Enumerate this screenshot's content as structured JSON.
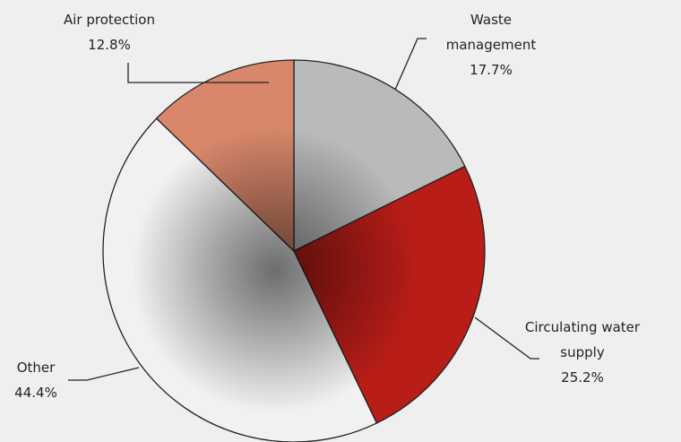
{
  "chart_data": {
    "type": "pie",
    "categories": [
      "Waste management",
      "Circulating water supply",
      "Other",
      "Air protection"
    ],
    "values": [
      17.7,
      25.2,
      44.4,
      12.8
    ],
    "value_labels": [
      "17.7%",
      "25.2%",
      "44.4%",
      "12.8%"
    ],
    "colors": [
      "#b9babc",
      "#b81d18",
      "#f1f1f1",
      "#d8876b"
    ]
  }
}
